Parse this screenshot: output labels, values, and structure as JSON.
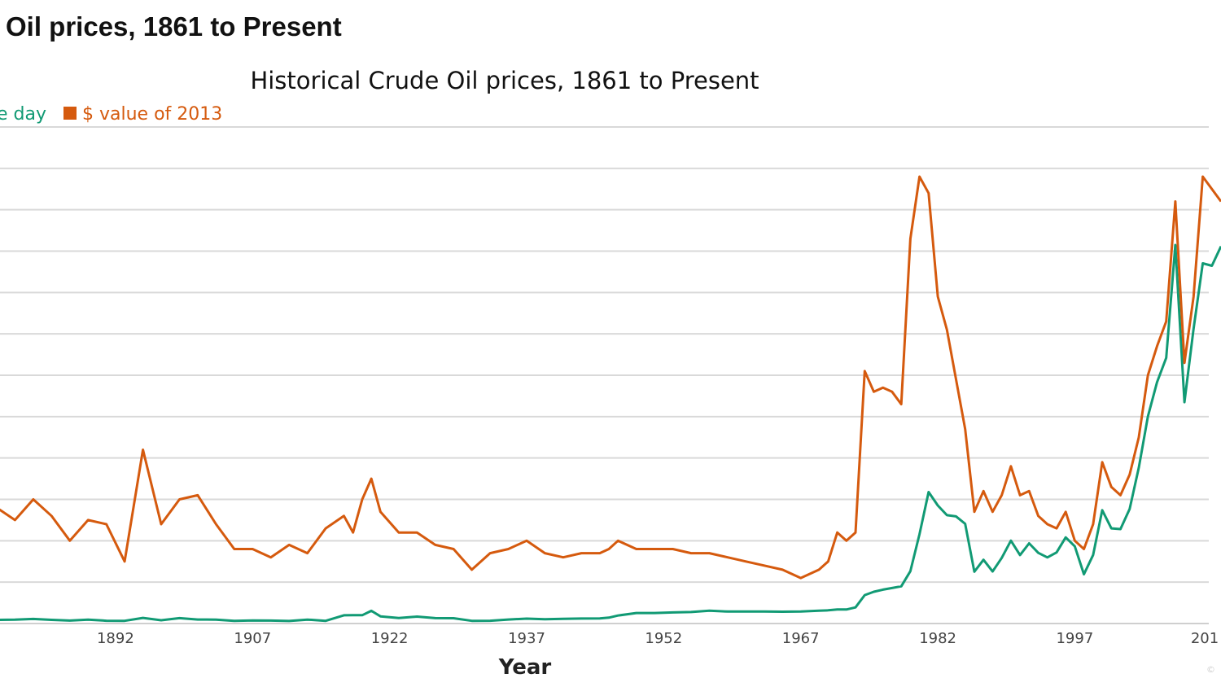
{
  "page": {
    "heading": "Oil prices, 1861 to Present"
  },
  "colors": {
    "money_of_day": "#119a74",
    "value_2013": "#d55a0e",
    "grid": "#d9d9d9"
  },
  "chart_data": {
    "type": "line",
    "title": "Historical Crude Oil prices, 1861 to Present",
    "xlabel": "Year",
    "ylabel": "",
    "x_ticks": [
      "1892",
      "1907",
      "1922",
      "1937",
      "1952",
      "1967",
      "1982",
      "1997",
      "201"
    ],
    "credit": "©",
    "legend": [
      {
        "label": "e day",
        "color": "#119a74"
      },
      {
        "label": "$ value of 2013",
        "color": "#d55a0e"
      }
    ],
    "xlim": [
      1879,
      2013
    ],
    "ylim": [
      0,
      120
    ],
    "grid_lines": 12,
    "grid": true,
    "legend_position": "top-left",
    "series": [
      {
        "key": "money_of_day",
        "color": "#119a74",
        "x": [
          1879,
          1881,
          1883,
          1885,
          1887,
          1889,
          1891,
          1893,
          1895,
          1897,
          1899,
          1901,
          1903,
          1905,
          1907,
          1909,
          1911,
          1913,
          1915,
          1917,
          1918,
          1919,
          1920,
          1921,
          1923,
          1925,
          1927,
          1929,
          1931,
          1933,
          1935,
          1937,
          1939,
          1941,
          1943,
          1945,
          1946,
          1947,
          1949,
          1951,
          1953,
          1955,
          1957,
          1959,
          1961,
          1963,
          1965,
          1967,
          1969,
          1970,
          1971,
          1972,
          1973,
          1974,
          1975,
          1976,
          1977,
          1978,
          1979,
          1980,
          1981,
          1982,
          1983,
          1984,
          1985,
          1986,
          1987,
          1988,
          1989,
          1990,
          1991,
          1992,
          1993,
          1994,
          1995,
          1996,
          1997,
          1998,
          1999,
          2000,
          2001,
          2002,
          2003,
          2004,
          2005,
          2006,
          2007,
          2008,
          2009,
          2010,
          2011,
          2012,
          2013
        ],
        "values": [
          0.86,
          0.92,
          1.1,
          0.88,
          0.71,
          0.94,
          0.67,
          0.64,
          1.36,
          0.79,
          1.29,
          0.96,
          0.94,
          0.62,
          0.72,
          0.7,
          0.61,
          0.95,
          0.64,
          1.98,
          2.01,
          2.01,
          3.07,
          1.73,
          1.34,
          1.68,
          1.3,
          1.27,
          0.65,
          0.67,
          0.97,
          1.18,
          1.02,
          1.14,
          1.2,
          1.22,
          1.41,
          1.93,
          2.54,
          2.53,
          2.68,
          2.77,
          3.09,
          2.9,
          2.89,
          2.89,
          2.86,
          2.92,
          3.09,
          3.18,
          3.39,
          3.39,
          3.89,
          6.87,
          7.67,
          8.19,
          8.57,
          9.0,
          12.64,
          21.59,
          31.77,
          28.52,
          26.19,
          25.88,
          24.09,
          12.51,
          15.4,
          12.58,
          15.86,
          20.03,
          16.54,
          19.37,
          17.07,
          15.98,
          17.18,
          20.81,
          18.64,
          11.91,
          16.56,
          27.39,
          23.0,
          22.81,
          27.69,
          37.66,
          50.04,
          58.3,
          64.2,
          91.48,
          53.48,
          71.21,
          87.04,
          86.46,
          91.17
        ]
      },
      {
        "key": "value_2013",
        "color": "#d55a0e",
        "x": [
          1879,
          1881,
          1883,
          1885,
          1887,
          1889,
          1891,
          1893,
          1895,
          1897,
          1899,
          1901,
          1903,
          1905,
          1907,
          1909,
          1911,
          1913,
          1915,
          1917,
          1918,
          1919,
          1920,
          1921,
          1923,
          1925,
          1927,
          1929,
          1931,
          1933,
          1935,
          1937,
          1939,
          1941,
          1943,
          1945,
          1946,
          1947,
          1949,
          1951,
          1953,
          1955,
          1957,
          1959,
          1961,
          1963,
          1965,
          1967,
          1969,
          1970,
          1971,
          1972,
          1973,
          1974,
          1975,
          1976,
          1977,
          1978,
          1979,
          1980,
          1981,
          1982,
          1983,
          1984,
          1985,
          1986,
          1987,
          1988,
          1989,
          1990,
          1991,
          1992,
          1993,
          1994,
          1995,
          1996,
          1997,
          1998,
          1999,
          2000,
          2001,
          2002,
          2003,
          2004,
          2005,
          2006,
          2007,
          2008,
          2009,
          2010,
          2011,
          2012,
          2013
        ],
        "values": [
          28,
          25,
          30,
          26,
          20,
          25,
          24,
          15,
          42,
          24,
          30,
          31,
          24,
          18,
          18,
          16,
          19,
          17,
          23,
          26,
          22,
          30,
          35,
          27,
          22,
          22,
          19,
          18,
          13,
          17,
          18,
          20,
          17,
          16,
          17,
          17,
          18,
          20,
          18,
          18,
          18,
          17,
          17,
          16,
          15,
          14,
          13,
          11,
          13,
          15,
          22,
          20,
          22,
          61,
          56,
          57,
          56,
          53,
          93,
          108,
          104,
          79,
          71,
          59,
          47,
          27,
          32,
          27,
          31,
          38,
          31,
          32,
          26,
          24,
          23,
          27,
          20,
          18,
          24,
          39,
          33,
          31,
          36,
          45,
          60,
          67,
          73,
          102,
          63,
          79,
          108,
          105,
          102
        ]
      }
    ]
  }
}
